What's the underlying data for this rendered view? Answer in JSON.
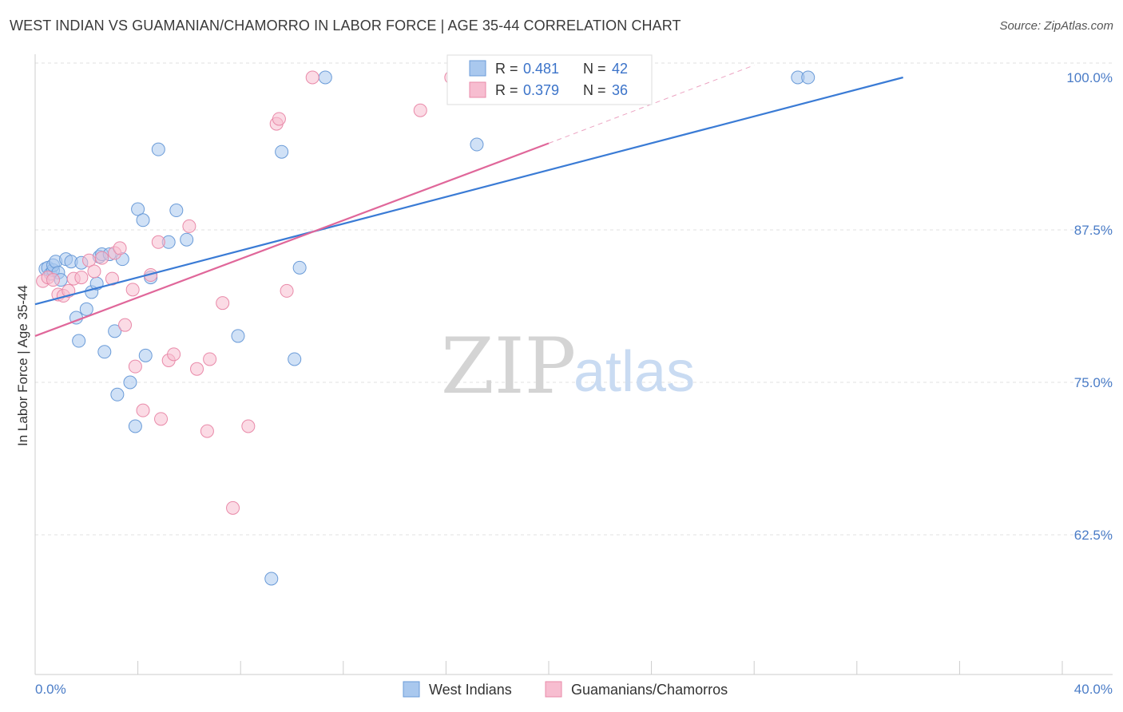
{
  "title": "WEST INDIAN VS GUAMANIAN/CHAMORRO IN LABOR FORCE | AGE 35-44 CORRELATION CHART",
  "source": "Source: ZipAtlas.com",
  "watermark": {
    "zip": "ZIP",
    "atlas": "atlas"
  },
  "chart_data": {
    "type": "scatter",
    "title": "WEST INDIAN VS GUAMANIAN/CHAMORRO IN LABOR FORCE | AGE 35-44 CORRELATION CHART",
    "ylabel": "In Labor Force | Age 35-44",
    "xlabel": "",
    "xlim": [
      0,
      40
    ],
    "ylim": [
      52,
      101
    ],
    "x_tick_labels": [
      "0.0%",
      "40.0%"
    ],
    "y_ticks": [
      62.5,
      75.0,
      87.5,
      100.0
    ],
    "y_tick_labels": [
      "62.5%",
      "75.0%",
      "87.5%",
      "100.0%"
    ],
    "legend": {
      "entries": [
        {
          "r_label": "R =",
          "r_value": "0.481",
          "n_label": "N =",
          "n_value": "42"
        },
        {
          "r_label": "R =",
          "r_value": "0.379",
          "n_label": "N =",
          "n_value": "36"
        }
      ]
    },
    "series": [
      {
        "name": "West Indians",
        "color": "#a9c8ee",
        "stroke": "#6a9bd8",
        "line_color": "#3a7bd5",
        "trend": {
          "x0": 0,
          "y0": 81.4,
          "x1": 33.8,
          "y1": 100.0
        },
        "points": [
          [
            0.4,
            84.3
          ],
          [
            0.5,
            84.4
          ],
          [
            0.6,
            83.9
          ],
          [
            0.7,
            84.2
          ],
          [
            0.7,
            84.6
          ],
          [
            0.8,
            84.9
          ],
          [
            0.9,
            84.0
          ],
          [
            1.0,
            83.4
          ],
          [
            1.2,
            85.1
          ],
          [
            1.4,
            84.9
          ],
          [
            1.6,
            80.3
          ],
          [
            1.7,
            78.4
          ],
          [
            1.8,
            84.8
          ],
          [
            2.0,
            81.0
          ],
          [
            2.2,
            82.4
          ],
          [
            2.4,
            83.1
          ],
          [
            2.5,
            85.3
          ],
          [
            2.6,
            85.5
          ],
          [
            2.7,
            77.5
          ],
          [
            2.9,
            85.5
          ],
          [
            3.1,
            79.2
          ],
          [
            3.2,
            74.0
          ],
          [
            3.4,
            85.1
          ],
          [
            3.7,
            75.0
          ],
          [
            3.9,
            71.4
          ],
          [
            4.0,
            89.2
          ],
          [
            4.2,
            88.3
          ],
          [
            4.3,
            77.2
          ],
          [
            4.5,
            83.6
          ],
          [
            4.8,
            94.1
          ],
          [
            5.2,
            86.5
          ],
          [
            5.5,
            89.1
          ],
          [
            5.9,
            86.7
          ],
          [
            7.9,
            78.8
          ],
          [
            9.2,
            58.9
          ],
          [
            9.6,
            93.9
          ],
          [
            10.1,
            76.9
          ],
          [
            10.3,
            84.4
          ],
          [
            11.3,
            100.0
          ],
          [
            17.2,
            94.5
          ],
          [
            29.7,
            100.0
          ],
          [
            30.1,
            100.0
          ]
        ]
      },
      {
        "name": "Guamanians/Chamorros",
        "color": "#f7bdd0",
        "stroke": "#e98aa9",
        "line_color": "#e0679a",
        "trend": {
          "x0": 0,
          "y0": 78.8,
          "x1": 20.0,
          "y1": 94.6
        },
        "trend_ext": {
          "x0": 20.0,
          "y0": 94.6,
          "x1": 28.0,
          "y1": 101.0
        },
        "points": [
          [
            0.3,
            83.3
          ],
          [
            0.5,
            83.6
          ],
          [
            0.7,
            83.4
          ],
          [
            0.9,
            82.2
          ],
          [
            1.1,
            82.1
          ],
          [
            1.3,
            82.5
          ],
          [
            1.5,
            83.5
          ],
          [
            1.8,
            83.6
          ],
          [
            2.1,
            85.0
          ],
          [
            2.3,
            84.1
          ],
          [
            2.6,
            85.2
          ],
          [
            3.0,
            83.5
          ],
          [
            3.1,
            85.6
          ],
          [
            3.3,
            86.0
          ],
          [
            3.5,
            79.7
          ],
          [
            3.8,
            82.6
          ],
          [
            3.9,
            76.3
          ],
          [
            4.2,
            72.7
          ],
          [
            4.5,
            83.8
          ],
          [
            4.8,
            86.5
          ],
          [
            4.9,
            72.0
          ],
          [
            5.2,
            76.8
          ],
          [
            5.4,
            77.3
          ],
          [
            6.0,
            87.8
          ],
          [
            6.3,
            76.1
          ],
          [
            6.7,
            71.0
          ],
          [
            6.8,
            76.9
          ],
          [
            7.3,
            81.5
          ],
          [
            7.7,
            64.7
          ],
          [
            8.3,
            71.4
          ],
          [
            9.4,
            96.2
          ],
          [
            9.5,
            96.6
          ],
          [
            9.8,
            82.5
          ],
          [
            10.8,
            100.0
          ],
          [
            15.0,
            97.3
          ],
          [
            16.2,
            100.0
          ]
        ]
      }
    ]
  }
}
